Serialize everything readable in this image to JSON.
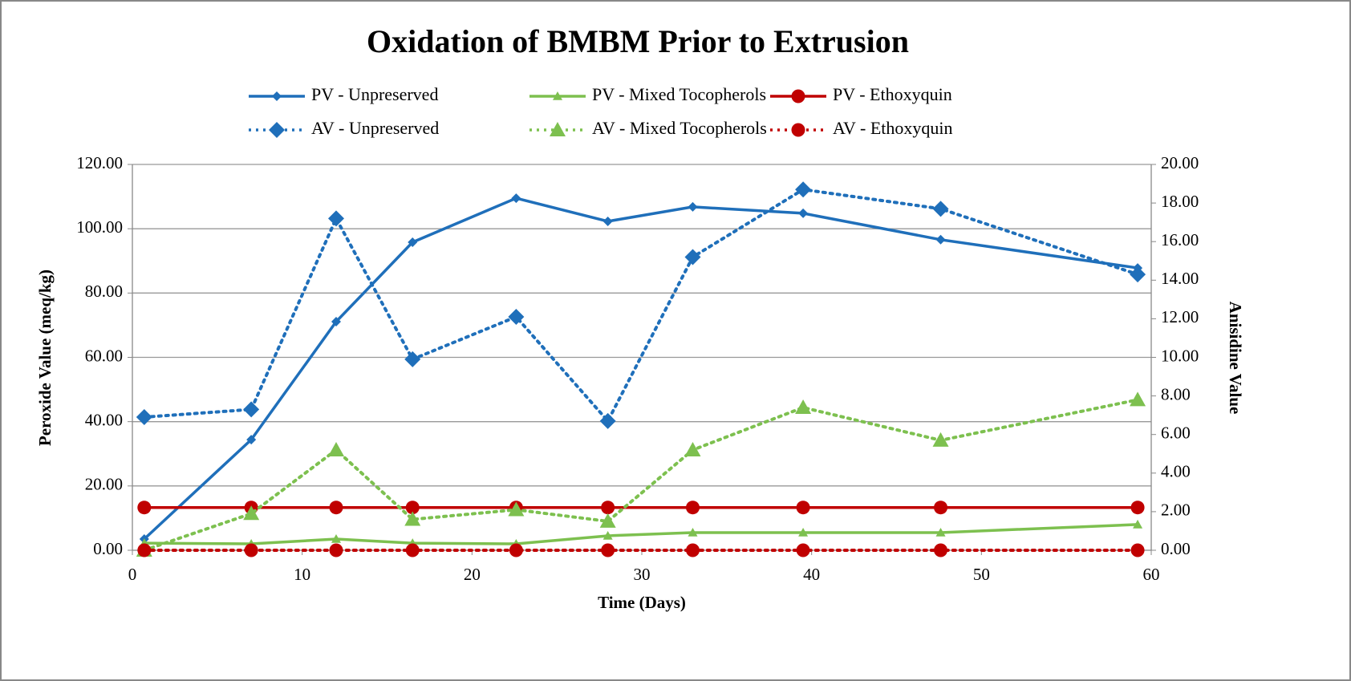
{
  "chart_data": {
    "type": "line",
    "title": "Oxidation of BMBM Prior to Extrusion",
    "x_label": "Time (Days)",
    "y_label": "Peroxide Value (meq/kg)",
    "y2_label": "Anisidine Value",
    "x": [
      0.7,
      7,
      12,
      16.5,
      22.6,
      28,
      33,
      39.5,
      47.6,
      59.2
    ],
    "xlim": [
      0,
      60
    ],
    "xticks": [
      0,
      10,
      20,
      30,
      40,
      50,
      60
    ],
    "ylim": [
      0,
      120
    ],
    "yticks": [
      {
        "value": 0,
        "label": "0.00"
      },
      {
        "value": 20,
        "label": "20.00"
      },
      {
        "value": 40,
        "label": "40.00"
      },
      {
        "value": 60,
        "label": "60.00"
      },
      {
        "value": 80,
        "label": "80.00"
      },
      {
        "value": 100,
        "label": "100.00"
      },
      {
        "value": 120,
        "label": "120.00"
      }
    ],
    "y2lim": [
      0,
      20
    ],
    "y2ticks": [
      {
        "value": 0,
        "label": "0.00"
      },
      {
        "value": 2,
        "label": "2.00"
      },
      {
        "value": 4,
        "label": "4.00"
      },
      {
        "value": 6,
        "label": "6.00"
      },
      {
        "value": 8,
        "label": "8.00"
      },
      {
        "value": 10,
        "label": "10.00"
      },
      {
        "value": 12,
        "label": "12.00"
      },
      {
        "value": 14,
        "label": "14.00"
      },
      {
        "value": 16,
        "label": "16.00"
      },
      {
        "value": 18,
        "label": "18.00"
      },
      {
        "value": 20,
        "label": "20.00"
      }
    ],
    "grid": true,
    "series": [
      {
        "name": "PV - Unpreserved",
        "color": "#1f6fba",
        "line_style": "solid",
        "marker": "diamond",
        "values": [
          3.5,
          34.4,
          71.1,
          95.8,
          109.5,
          102.3,
          106.8,
          104.8,
          96.6,
          87.8
        ]
      },
      {
        "name": "PV - Mixed Tocopherols",
        "color": "#7dc04f",
        "line_style": "solid",
        "marker": "triangle",
        "values": [
          2.2,
          2.0,
          3.5,
          2.2,
          2.0,
          4.5,
          5.5,
          5.5,
          5.5,
          8.0
        ]
      },
      {
        "name": "PV - Ethoxyquin",
        "color": "#c00000",
        "line_style": "solid",
        "marker": "circle",
        "values": [
          13.3,
          13.3,
          13.3,
          13.3,
          13.3,
          13.3,
          13.3,
          13.3,
          13.3,
          13.3
        ]
      },
      {
        "name": "AV - Unpreserved",
        "color": "#1f6fba",
        "line_style": "dotted",
        "marker": "diamond",
        "axis": "y2",
        "values": [
          6.9,
          7.3,
          17.2,
          9.9,
          12.1,
          6.7,
          15.2,
          18.7,
          17.7,
          14.3
        ]
      },
      {
        "name": "AV - Mixed Tocopherols",
        "color": "#7dc04f",
        "line_style": "dotted",
        "marker": "triangle",
        "axis": "y2",
        "values": [
          0,
          1.9,
          5.2,
          1.6,
          2.1,
          1.5,
          5.2,
          7.4,
          5.7,
          7.8
        ]
      },
      {
        "name": "AV - Ethoxyquin",
        "color": "#c00000",
        "line_style": "dotted",
        "marker": "circle",
        "axis": "y2",
        "values": [
          0,
          0,
          0,
          0,
          0,
          0,
          0,
          0,
          0,
          0
        ]
      }
    ]
  }
}
